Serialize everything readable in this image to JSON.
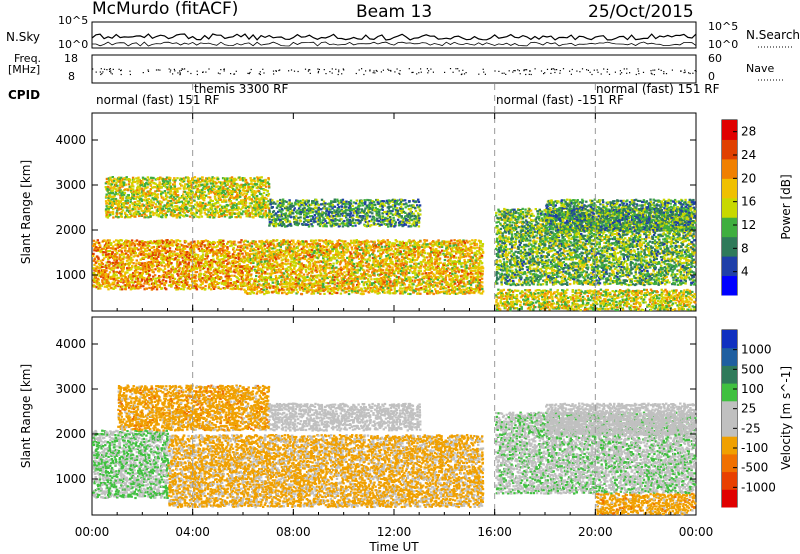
{
  "header": {
    "station": "McMurdo (fitACF)",
    "beam": "Beam 13",
    "date": "25/Oct/2015"
  },
  "top_panel": {
    "left_label": "N.Sky",
    "right_label": "N.Search",
    "left_ticks": [
      "10^5",
      "10^0"
    ],
    "right_ticks": [
      "10^5",
      "10^0"
    ]
  },
  "freq_panel": {
    "left_label_1": "Freq.",
    "left_label_2": "[MHz]",
    "left_ticks": [
      "18",
      "8"
    ],
    "right_ticks": [
      "60",
      "0"
    ],
    "right_label": "Nave"
  },
  "cpid_panel": {
    "label": "CPID",
    "segments": [
      "normal (fast) 151 RF",
      "themis 3300 RF",
      "normal (fast) -151 RF",
      "normal (fast) 151 RF"
    ]
  },
  "colors": {
    "power": [
      "#0000ff",
      "#1f3fa8",
      "#2f7a5a",
      "#3fae3f",
      "#c8d800",
      "#f0c000",
      "#f08000",
      "#e04000",
      "#e00000"
    ],
    "velocity": [
      "#e00000",
      "#e84000",
      "#f07000",
      "#f0a000",
      "#c0c0c0",
      "#c0c0c0",
      "#40c040",
      "#2f7a5a",
      "#1f5fa0",
      "#1030c0"
    ]
  },
  "chart_data": [
    {
      "type": "heatmap",
      "title": "",
      "xlabel": "",
      "ylabel": "Slant Range [km]",
      "x_ticks": [
        "00:00",
        "04:00",
        "08:00",
        "12:00",
        "16:00",
        "20:00",
        "00:00"
      ],
      "y_ticks": [
        "1000",
        "2000",
        "3000",
        "4000"
      ],
      "ylim": [
        200,
        4600
      ],
      "x_unit": "hours UT",
      "colorbar": {
        "label": "Power [dB]",
        "ticks": [
          "4",
          "8",
          "12",
          "16",
          "20",
          "24",
          "28"
        ],
        "range": [
          0,
          30
        ]
      },
      "features": [
        {
          "t": [
            0.5,
            7.0
          ],
          "range_km": [
            2300,
            3200
          ],
          "level": 16
        },
        {
          "t": [
            0.0,
            6.0
          ],
          "range_km": [
            700,
            1800
          ],
          "level": 20
        },
        {
          "t": [
            6.0,
            15.5
          ],
          "range_km": [
            600,
            1800
          ],
          "level": 18
        },
        {
          "t": [
            7.0,
            13.0
          ],
          "range_km": [
            2100,
            2700
          ],
          "level": 10
        },
        {
          "t": [
            16.0,
            24.0
          ],
          "range_km": [
            800,
            2500
          ],
          "level": 12
        },
        {
          "t": [
            18.0,
            24.0
          ],
          "range_km": [
            2000,
            2700
          ],
          "level": 10
        },
        {
          "t": [
            16.0,
            24.0
          ],
          "range_km": [
            200,
            700
          ],
          "level": 16
        }
      ]
    },
    {
      "type": "heatmap",
      "title": "",
      "xlabel": "Time UT",
      "ylabel": "Slant Range [km]",
      "x_ticks": [
        "00:00",
        "04:00",
        "08:00",
        "12:00",
        "16:00",
        "20:00",
        "00:00"
      ],
      "y_ticks": [
        "1000",
        "2000",
        "3000",
        "4000"
      ],
      "ylim": [
        200,
        4600
      ],
      "x_unit": "hours UT",
      "colorbar": {
        "label": "Velocity [m s^-1]",
        "ticks": [
          "1000",
          "500",
          "100",
          "25",
          "-25",
          "-100",
          "-500",
          "-1000"
        ],
        "range": [
          -1000,
          1000
        ]
      },
      "features": [
        {
          "t": [
            0.0,
            3.0
          ],
          "range_km": [
            600,
            2100
          ],
          "level": 200
        },
        {
          "t": [
            3.0,
            15.5
          ],
          "range_km": [
            400,
            2000
          ],
          "level": -250
        },
        {
          "t": [
            1.0,
            7.0
          ],
          "range_km": [
            2100,
            3100
          ],
          "level": -300
        },
        {
          "t": [
            7.0,
            13.0
          ],
          "range_km": [
            2100,
            2700
          ],
          "level": 0
        },
        {
          "t": [
            16.0,
            24.0
          ],
          "range_km": [
            700,
            2500
          ],
          "level": 150
        },
        {
          "t": [
            18.0,
            24.0
          ],
          "range_km": [
            2000,
            2700
          ],
          "level": 0
        },
        {
          "t": [
            20.0,
            24.0
          ],
          "range_km": [
            200,
            700
          ],
          "level": -300
        }
      ]
    }
  ]
}
